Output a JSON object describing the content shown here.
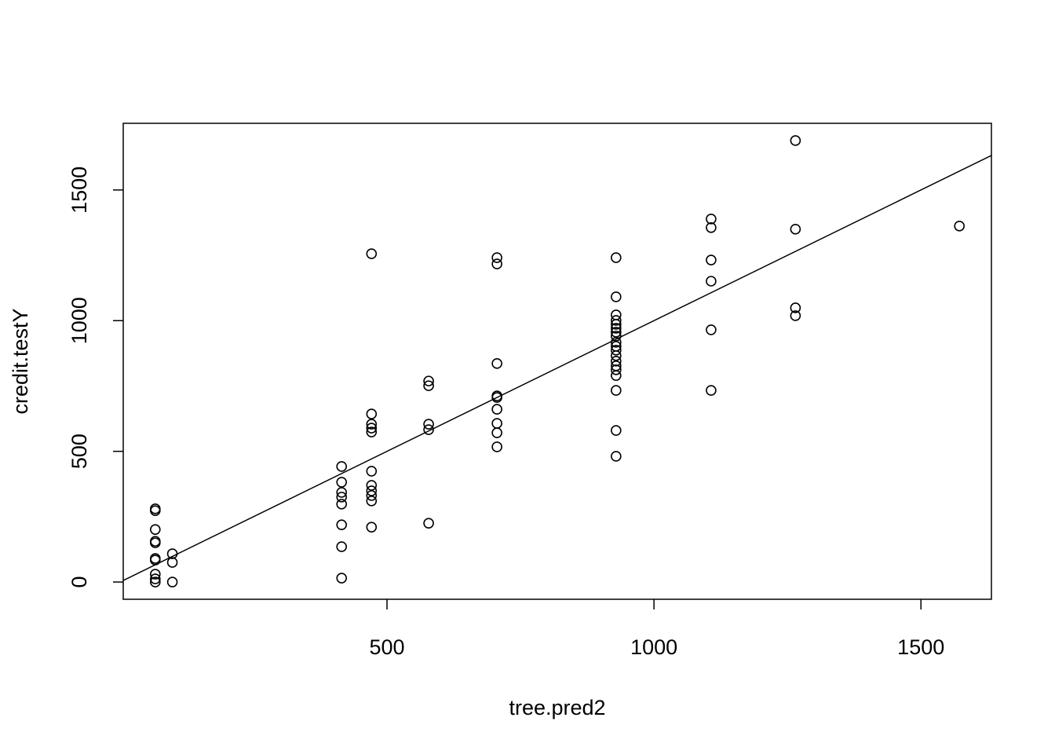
{
  "chart_data": {
    "type": "scatter",
    "x_label": "tree.pred2",
    "y_label": "credit.testY",
    "x": [
      66,
      66,
      66,
      66,
      66,
      66,
      66,
      66,
      66,
      66,
      98,
      98,
      98,
      415,
      415,
      415,
      415,
      415,
      415,
      415,
      415,
      471,
      471,
      471,
      471,
      471,
      471,
      471,
      471,
      471,
      471,
      471,
      578,
      578,
      578,
      578,
      578,
      706,
      706,
      706,
      706,
      706,
      706,
      706,
      706,
      706,
      929,
      929,
      929,
      929,
      929,
      929,
      929,
      929,
      929,
      929,
      929,
      929,
      929,
      929,
      929,
      929,
      929,
      929,
      929,
      1107,
      1107,
      1107,
      1107,
      1107,
      1107,
      1265,
      1265,
      1265,
      1265,
      1572
    ],
    "y": [
      280,
      273,
      201,
      156,
      150,
      90,
      84,
      30,
      12,
      0,
      108,
      75,
      0,
      442,
      382,
      343,
      325,
      298,
      219,
      135,
      15,
      1256,
      643,
      604,
      589,
      574,
      424,
      370,
      349,
      331,
      310,
      210,
      769,
      751,
      604,
      583,
      225,
      1241,
      1217,
      836,
      712,
      706,
      661,
      607,
      571,
      517,
      1241,
      1091,
      1022,
      1001,
      986,
      971,
      956,
      941,
      917,
      902,
      887,
      866,
      845,
      827,
      812,
      790,
      733,
      580,
      481,
      1389,
      1356,
      1232,
      1151,
      965,
      733,
      1689,
      1350,
      1049,
      1019,
      1362
    ],
    "color": "#000000",
    "abline": {
      "intercept": 0,
      "slope": 1
    },
    "xlim": [
      6,
      1632
    ],
    "ylim": [
      -66,
      1755
    ],
    "xticks": [
      500,
      1000,
      1500
    ],
    "yticks": [
      0,
      500,
      1000,
      1500
    ]
  }
}
